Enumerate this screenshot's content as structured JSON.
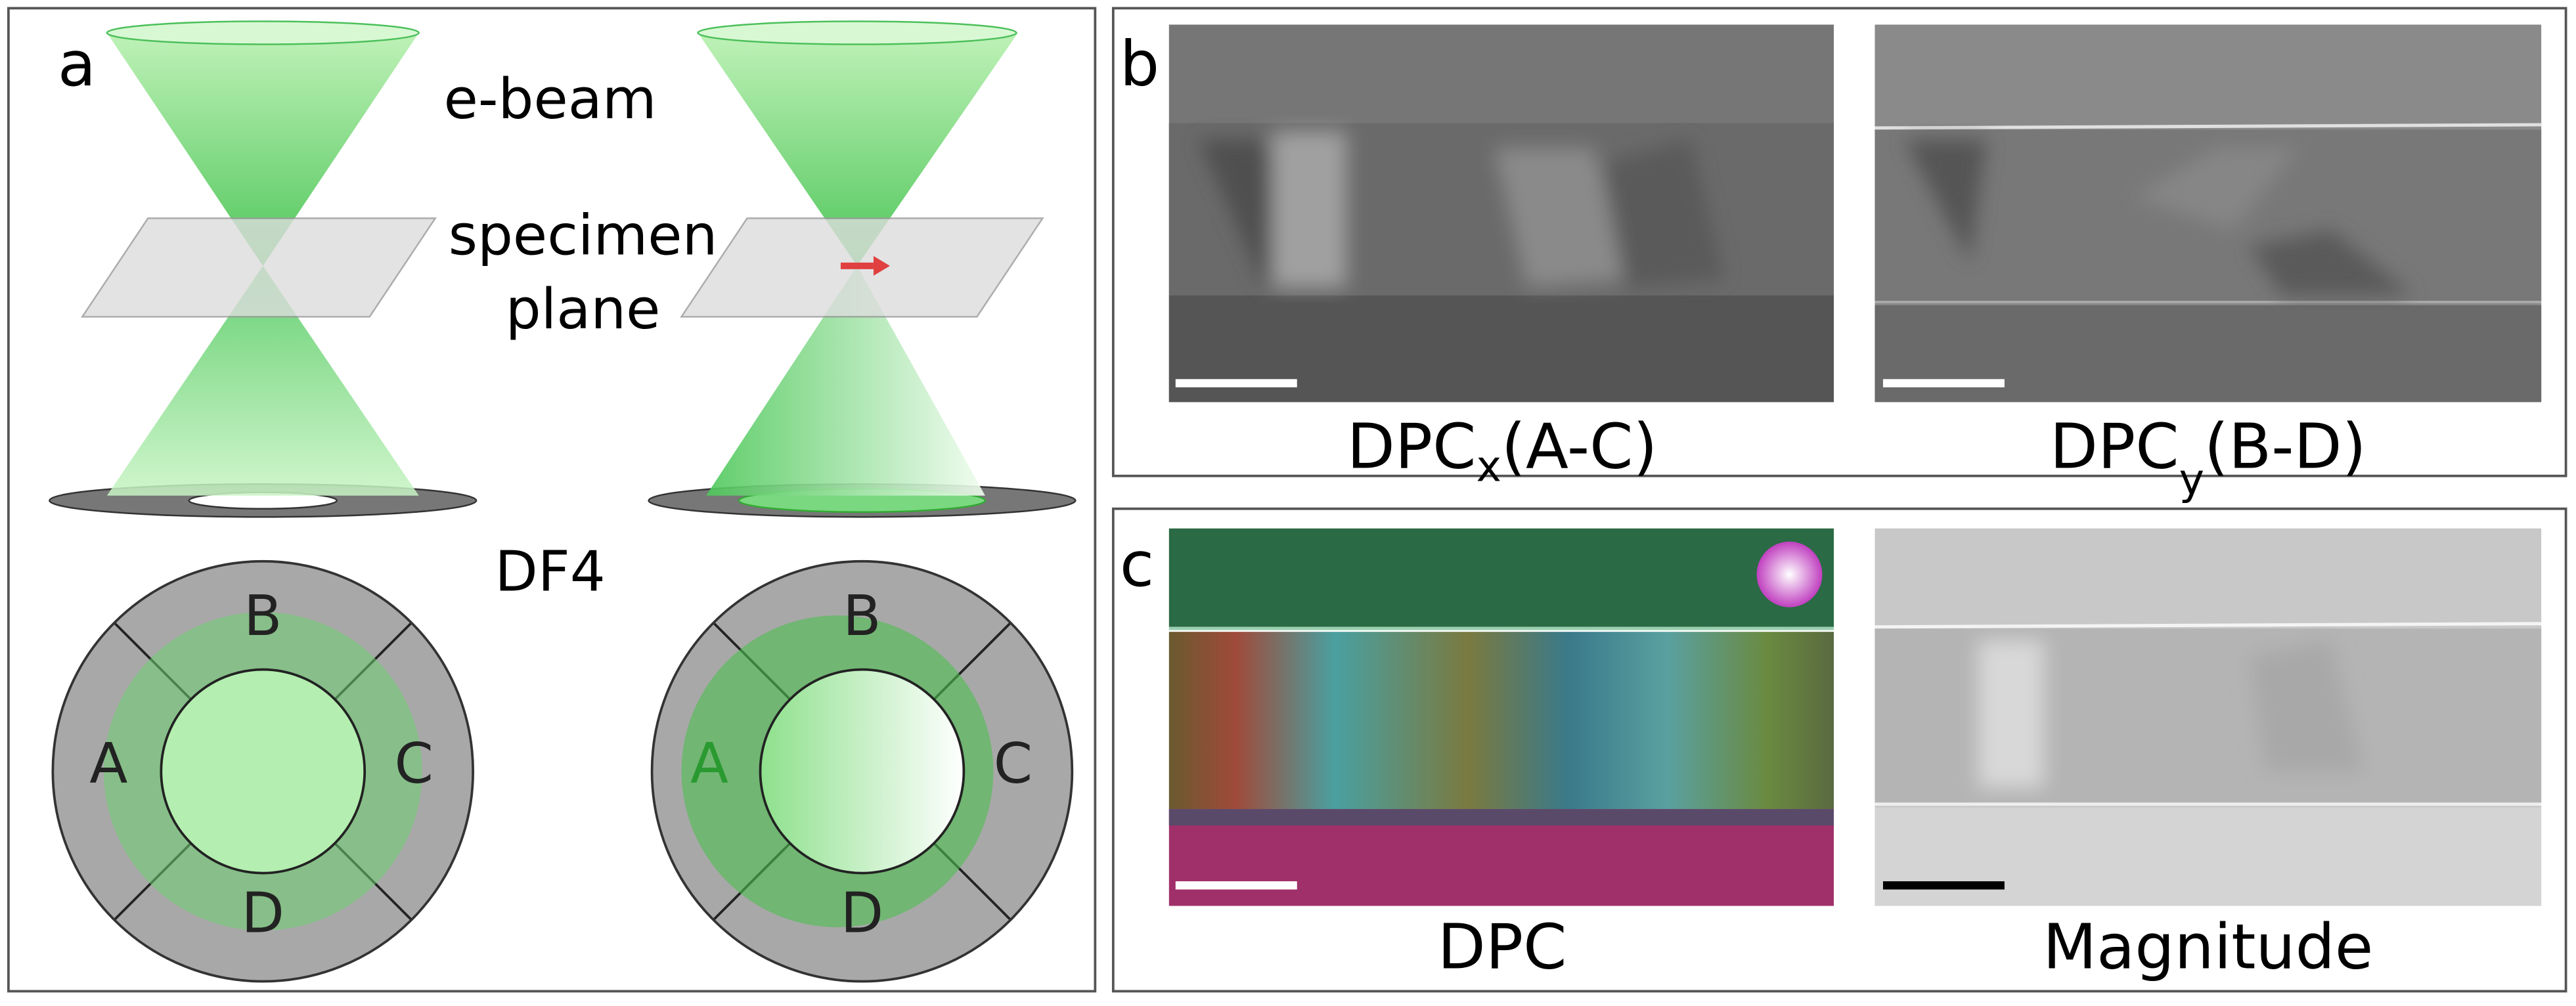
{
  "panel_a": {
    "label": "a",
    "beam_label": "e-beam",
    "specimen_label": [
      "specimen",
      "plane"
    ],
    "detector_label": "DF4",
    "left_segments": [
      "B",
      "A",
      "C",
      "D"
    ],
    "right_segments": [
      "B",
      "A",
      "C",
      "D"
    ]
  },
  "panel_b": {
    "label": "b",
    "images": [
      {
        "caption": "DPC",
        "subscript": "x",
        "suffix": "(A-C)"
      },
      {
        "caption": "DPC",
        "subscript": "y",
        "suffix": "(B-D)"
      }
    ]
  },
  "panel_c": {
    "label": "c",
    "images": [
      {
        "caption": "DPC"
      },
      {
        "caption": "Magnitude"
      }
    ]
  }
}
